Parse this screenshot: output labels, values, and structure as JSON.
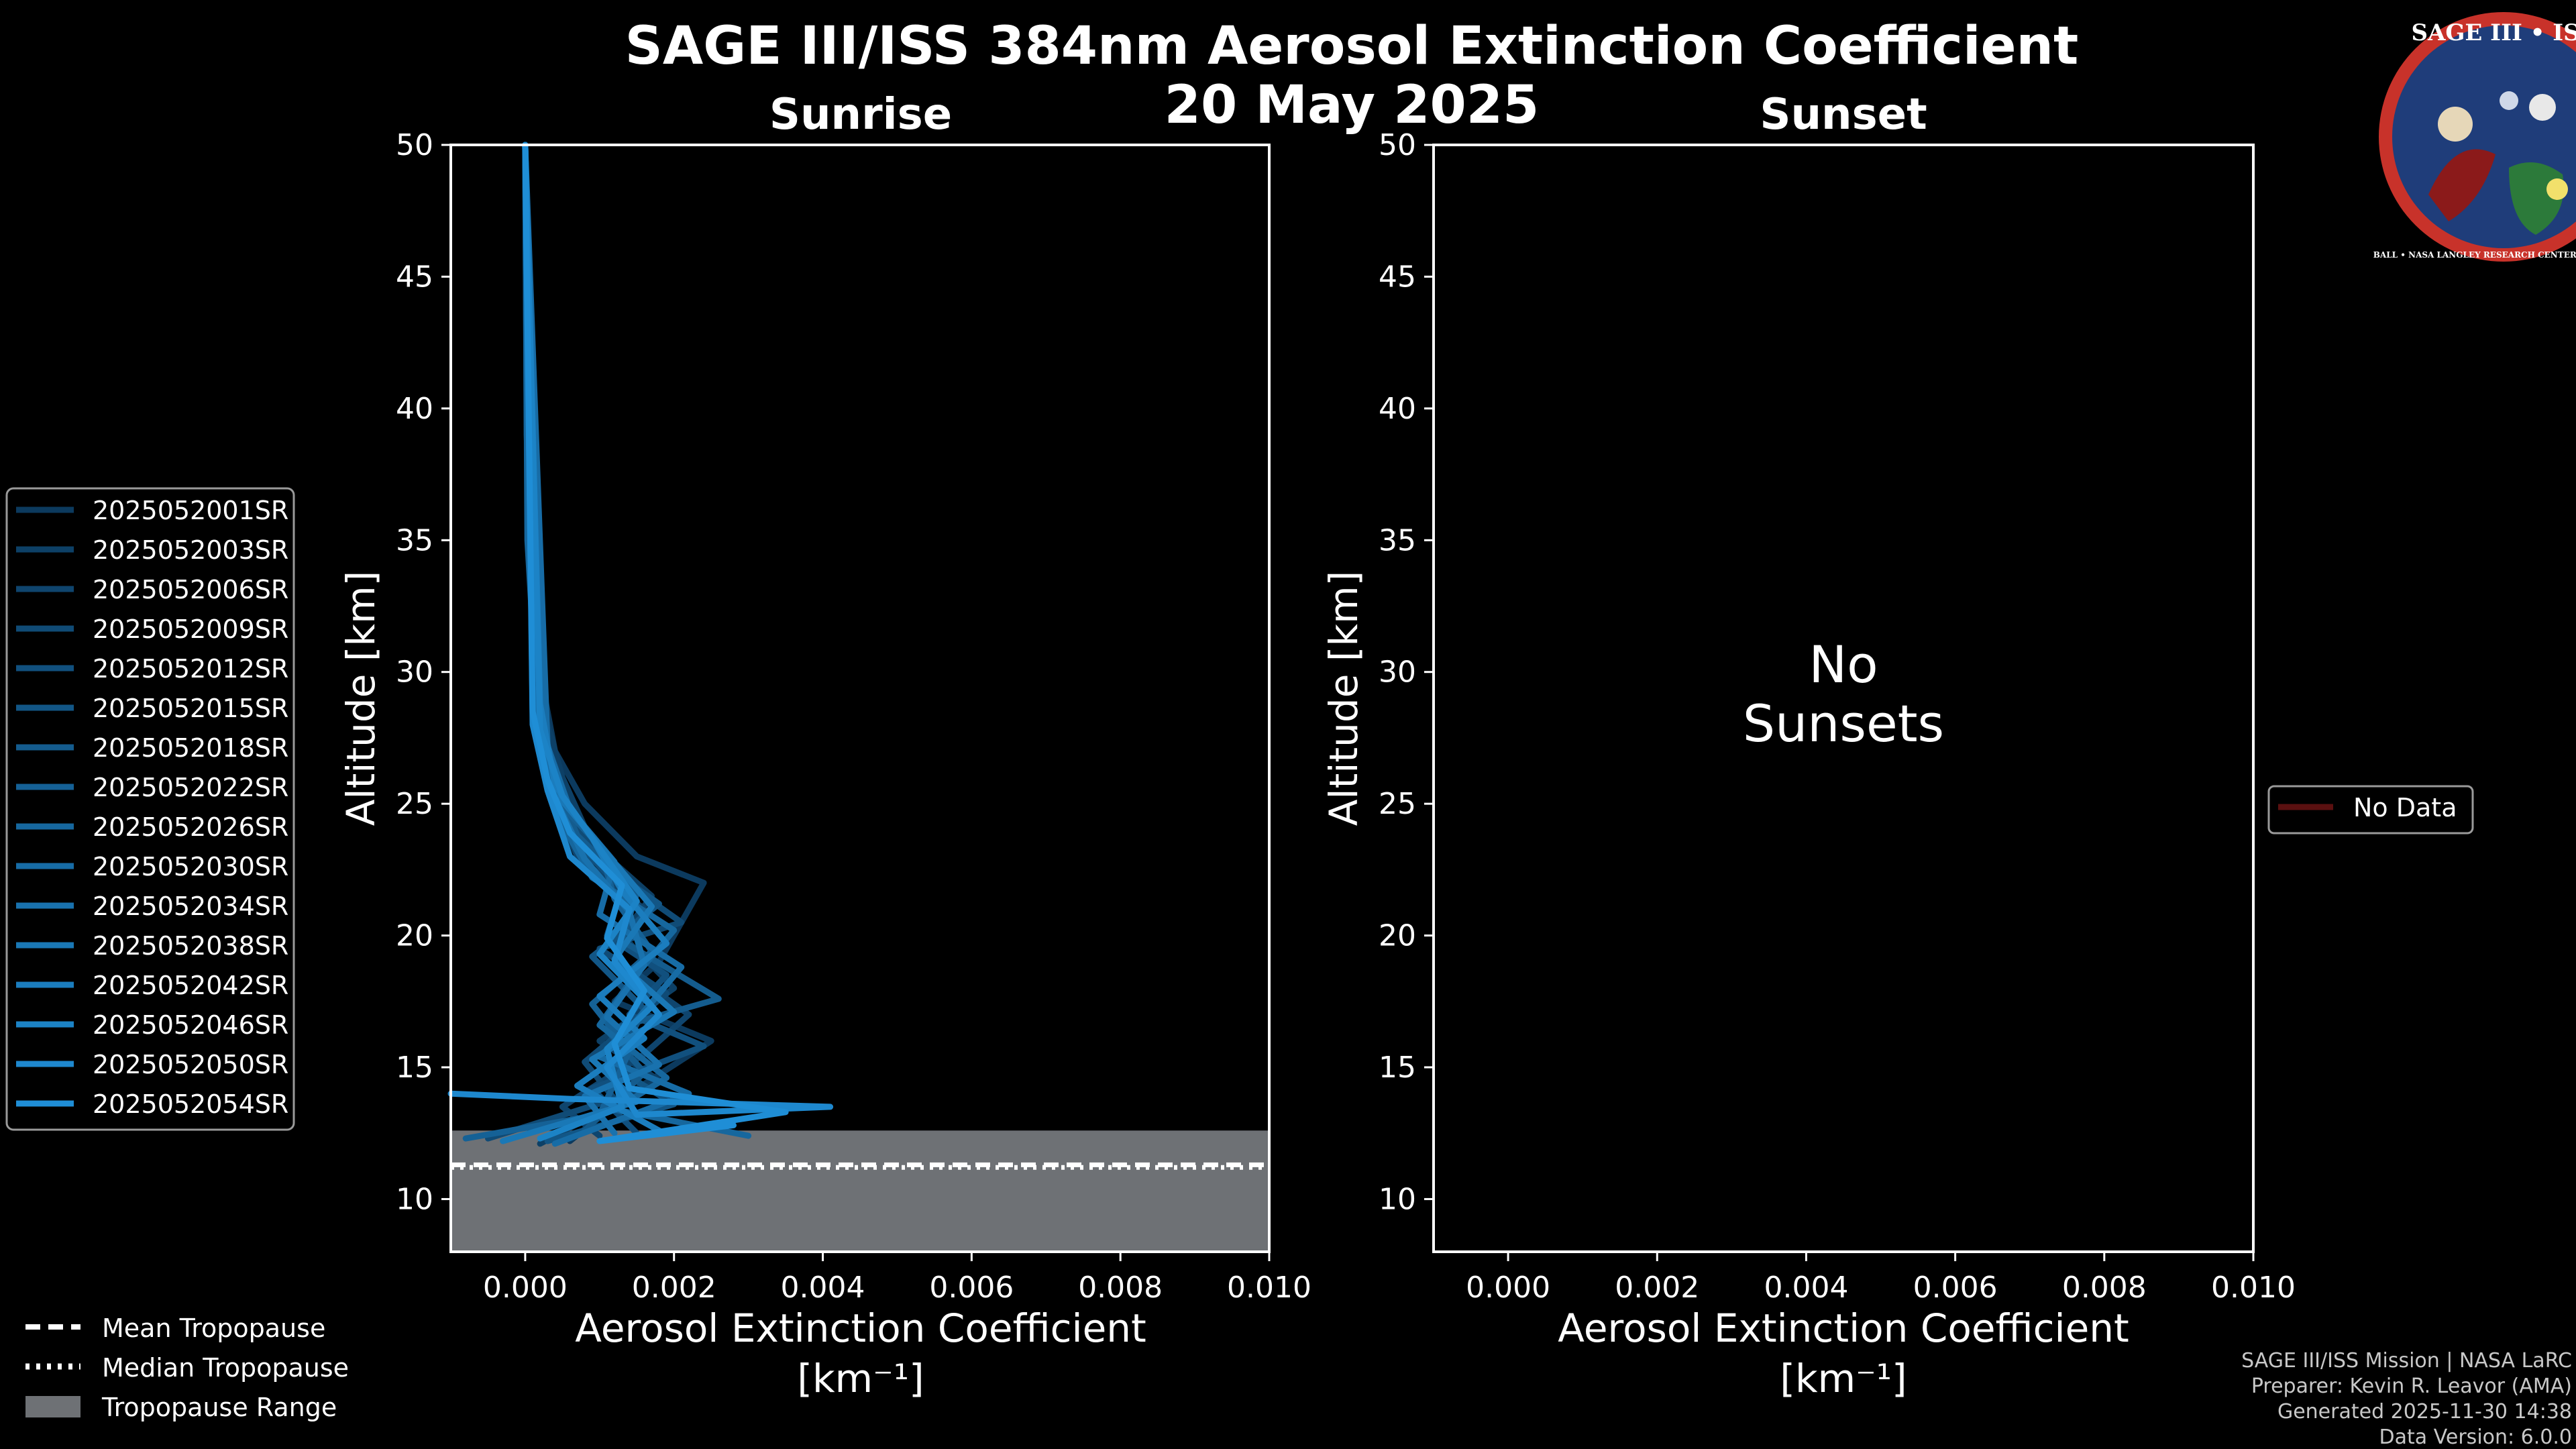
{
  "title": "SAGE III/ISS 384nm Aerosol Extinction Coefficient",
  "date": "20 May 2025",
  "logo": {
    "text": "SAGE III • ISS",
    "ring": "BALL • NASA LANGLEY RESEARCH CENTER • TAS • ESA"
  },
  "footer": [
    "SAGE III/ISS Mission | NASA LaRC",
    "Preparer: Kevin R. Leavor (AMA)",
    "Generated 2025-11-30 14:38",
    "Data Version: 6.0.0"
  ],
  "colors": {
    "background": "#000000",
    "series_dark": "#0c3a5e",
    "series_light": "#1f8ed6",
    "tropopause_fill": "#6e7175",
    "nodata_line": "#5a1010"
  },
  "chart_data": [
    {
      "type": "line",
      "panel": "sunrise",
      "title": "Sunrise",
      "xlabel": "Aerosol Extinction Coefficient",
      "xunit": "[km⁻¹]",
      "ylabel": "Altitude [km]",
      "xlim": [
        -0.001,
        0.01
      ],
      "ylim": [
        8,
        50
      ],
      "xticks": [
        "0.000",
        "0.002",
        "0.004",
        "0.006",
        "0.008",
        "0.010"
      ],
      "yticks": [
        "10",
        "15",
        "20",
        "25",
        "30",
        "35",
        "40",
        "45",
        "50"
      ],
      "tropopause": {
        "mean": 11.3,
        "median": 11.2,
        "range": [
          8,
          12.6
        ]
      },
      "legend": [
        "2025052001SR",
        "2025052003SR",
        "2025052006SR",
        "2025052009SR",
        "2025052012SR",
        "2025052015SR",
        "2025052018SR",
        "2025052022SR",
        "2025052026SR",
        "2025052030SR",
        "2025052034SR",
        "2025052038SR",
        "2025052042SR",
        "2025052046SR",
        "2025052050SR",
        "2025052054SR"
      ],
      "series": [
        {
          "name": "2025052001SR",
          "x": [
            0.0006,
            0.0014,
            0.0025,
            0.0012,
            0.0018,
            0.0024,
            0.0015,
            0.0008,
            0.0004,
            0.0002,
            5e-05,
            0.0
          ],
          "y": [
            12.2,
            14,
            16,
            17.5,
            19,
            22,
            23,
            25,
            27,
            30,
            40,
            50
          ]
        },
        {
          "name": "2025052003SR",
          "x": [
            0.0002,
            0.0018,
            0.001,
            0.002,
            0.0013,
            0.0017,
            0.0009,
            0.0005,
            0.0002,
            3e-05,
            0.0
          ],
          "y": [
            12.1,
            14.5,
            16,
            18,
            20,
            21.5,
            23.5,
            26,
            29,
            38,
            50
          ]
        },
        {
          "name": "2025052006SR",
          "x": [
            0.001,
            0.0005,
            0.0016,
            0.0022,
            0.0012,
            0.0016,
            0.0007,
            0.0004,
            0.0002,
            5e-05,
            0.0
          ],
          "y": [
            12.4,
            13.5,
            15.5,
            17,
            19,
            21,
            23,
            25,
            28,
            36,
            50
          ]
        },
        {
          "name": "2025052009SR",
          "x": [
            -0.0005,
            0.0012,
            0.0008,
            0.0019,
            0.001,
            0.0021,
            0.0011,
            0.0006,
            0.0003,
            0.0001,
            0.0
          ],
          "y": [
            12.3,
            13.8,
            15.2,
            17.8,
            19.5,
            20.5,
            22.5,
            24.5,
            27,
            33,
            50
          ]
        },
        {
          "name": "2025052012SR",
          "x": [
            0.0015,
            0.0009,
            0.0024,
            0.0014,
            0.0019,
            0.0011,
            0.0013,
            0.0005,
            0.0002,
            2e-05,
            0.0
          ],
          "y": [
            12.5,
            14.2,
            15.8,
            17,
            18.5,
            20,
            21.8,
            24,
            27.5,
            39,
            50
          ]
        },
        {
          "name": "2025052015SR",
          "x": [
            0.0003,
            0.002,
            0.0012,
            0.0016,
            0.0009,
            0.0018,
            0.0008,
            0.0004,
            0.0001,
            0.0
          ],
          "y": [
            12.2,
            13.6,
            15,
            17.2,
            19.2,
            21.2,
            23.2,
            25.5,
            30,
            50
          ]
        },
        {
          "name": "2025052018SR",
          "x": [
            0.0008,
            0.0016,
            0.0011,
            0.0026,
            0.0013,
            0.0015,
            0.0007,
            0.0003,
            0.0001,
            0.0
          ],
          "y": [
            12.6,
            14.8,
            16.4,
            17.6,
            19.8,
            21.6,
            23.8,
            26.5,
            31,
            50
          ]
        },
        {
          "name": "2025052022SR",
          "x": [
            -0.0008,
            0.001,
            0.0014,
            0.0009,
            0.0017,
            0.0012,
            0.001,
            0.0004,
            0.0002,
            0.0
          ],
          "y": [
            12.3,
            13.2,
            15.6,
            17.4,
            19.4,
            21.4,
            23.4,
            25.2,
            28.5,
            50
          ]
        },
        {
          "name": "2025052026SR",
          "x": [
            0.003,
            0.0012,
            0.0019,
            0.001,
            0.0014,
            0.002,
            0.0009,
            0.0005,
            0.0002,
            3e-05,
            0.0
          ],
          "y": [
            12.4,
            13.4,
            14.6,
            16.6,
            18.2,
            20.2,
            22.2,
            24.2,
            26.8,
            35,
            50
          ]
        },
        {
          "name": "2025052030SR",
          "x": [
            0.0004,
            0.0022,
            0.001,
            0.0015,
            0.0021,
            0.001,
            0.0012,
            0.0006,
            0.0003,
            0.0
          ],
          "y": [
            12.1,
            14,
            15.4,
            16.8,
            18.8,
            20.8,
            22.8,
            24.8,
            27.2,
            50
          ]
        },
        {
          "name": "2025052034SR",
          "x": [
            0.0012,
            0.0008,
            0.0018,
            0.0011,
            0.0016,
            0.0014,
            0.0008,
            0.0003,
            0.0001,
            0.0
          ],
          "y": [
            12.5,
            13.9,
            15.1,
            16.9,
            18.9,
            20.9,
            22.9,
            25.8,
            29.5,
            50
          ]
        },
        {
          "name": "2025052038SR",
          "x": [
            -0.0003,
            0.0015,
            0.0009,
            0.002,
            0.0012,
            0.0017,
            0.0011,
            0.0005,
            0.0002,
            0.0
          ],
          "y": [
            12.2,
            13.7,
            15.3,
            17.1,
            19.1,
            21.1,
            23.1,
            25.1,
            28,
            50
          ]
        },
        {
          "name": "2025052042SR",
          "x": [
            0.0018,
            0.0007,
            0.0016,
            0.001,
            0.0019,
            0.0013,
            0.0009,
            0.0004,
            0.0002,
            0.0
          ],
          "y": [
            12.6,
            14.3,
            16.1,
            17.7,
            19.7,
            21.7,
            23.7,
            25.7,
            28.8,
            50
          ]
        },
        {
          "name": "2025052046SR",
          "x": [
            0.0002,
            0.0013,
            0.0011,
            0.0017,
            0.001,
            0.0015,
            0.001,
            0.0005,
            0.0002,
            0.0
          ],
          "y": [
            12.3,
            13.5,
            15.7,
            17.3,
            19.3,
            21.3,
            23.3,
            25.3,
            27.8,
            50
          ]
        },
        {
          "name": "2025052050SR",
          "x": [
            -0.001,
            0.0006,
            0.0041,
            0.0015,
            0.0011,
            0.0018,
            0.0012,
            0.0014,
            0.0006,
            0.0003,
            0.0001,
            0.0
          ],
          "y": [
            14,
            13.8,
            13.5,
            13.2,
            15,
            17,
            19,
            21,
            23,
            25.5,
            28,
            50
          ]
        },
        {
          "name": "2025052054SR",
          "x": [
            0.0028,
            0.001,
            0.0035,
            0.0014,
            0.0012,
            0.0016,
            0.0011,
            0.0013,
            0.0006,
            0.0003,
            0.0001,
            0.0
          ],
          "y": [
            12.8,
            12.2,
            13.3,
            14.2,
            15.9,
            17.9,
            19.9,
            21.9,
            23.9,
            25.9,
            28.5,
            50
          ]
        }
      ]
    },
    {
      "type": "line",
      "panel": "sunset",
      "title": "Sunset",
      "xlabel": "Aerosol Extinction Coefficient",
      "xunit": "[km⁻¹]",
      "ylabel": "Altitude [km]",
      "xlim": [
        -0.001,
        0.01
      ],
      "ylim": [
        8,
        50
      ],
      "xticks": [
        "0.000",
        "0.002",
        "0.004",
        "0.006",
        "0.008",
        "0.010"
      ],
      "yticks": [
        "10",
        "15",
        "20",
        "25",
        "30",
        "35",
        "40",
        "45",
        "50"
      ],
      "message": [
        "No",
        "Sunsets"
      ],
      "legend": [
        "No Data"
      ],
      "series": []
    }
  ],
  "bottom_legend": [
    "Mean Tropopause",
    "Median Tropopause",
    "Tropopause Range"
  ]
}
